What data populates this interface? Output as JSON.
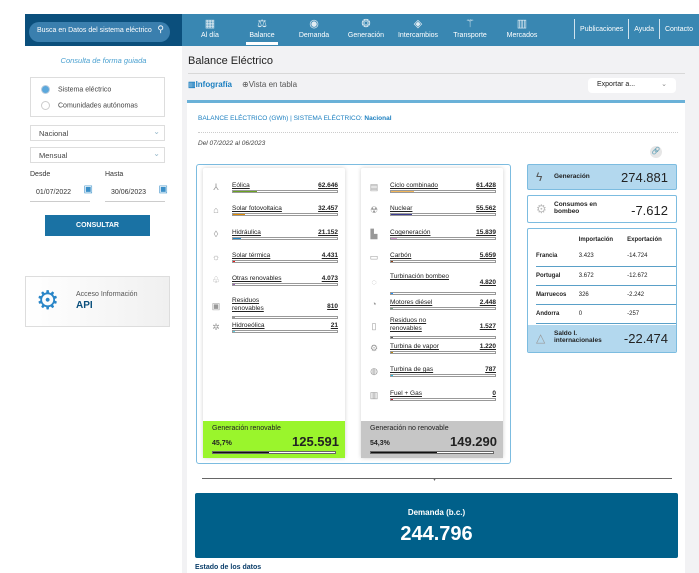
{
  "search": {
    "placeholder": "Busca en Datos del sistema eléctrico"
  },
  "nav": {
    "items": [
      {
        "label": "Al día",
        "icon": "calendar-icon",
        "glyph": "▦"
      },
      {
        "label": "Balance",
        "icon": "scale-icon",
        "glyph": "⚖",
        "active": true
      },
      {
        "label": "Demanda",
        "icon": "demand-icon",
        "glyph": "◉"
      },
      {
        "label": "Generación",
        "icon": "generation-icon",
        "glyph": "❂"
      },
      {
        "label": "Intercambios",
        "icon": "exchange-icon",
        "glyph": "◈"
      },
      {
        "label": "Transporte",
        "icon": "tower-icon",
        "glyph": "⚚"
      },
      {
        "label": "Mercados",
        "icon": "markets-icon",
        "glyph": "▥"
      }
    ],
    "links": [
      "Publicaciones",
      "Ayuda",
      "Contacto"
    ]
  },
  "sidebar": {
    "guided": "Consulta de forma guiada",
    "radios": [
      "Sistema eléctrico",
      "Comunidades autónomas"
    ],
    "region": "Nacional",
    "granularity": "Mensual",
    "from_label": "Desde",
    "from": "01/07/2022",
    "to_label": "Hasta",
    "to": "30/06/2023",
    "consult": "CONSULTAR",
    "api_line1": "Acceso Información",
    "api_line2": "API"
  },
  "page": {
    "title": "Balance Eléctrico",
    "tab_infographic": "Infografía",
    "tab_table": "Vista en tabla",
    "export": "Exportar a...",
    "header_a": "BALANCE ELÉCTRICO (GWh) | SISTEMA ELÉCTRICO:",
    "header_b": "Nacional",
    "period": "Del 07/2022 al 06/2023"
  },
  "renewable": {
    "items": [
      {
        "name": "Eólica",
        "value": "62.646",
        "num": 62646,
        "color": "#6aa121",
        "icon": "wind-turbine-icon",
        "glyph": "⅄"
      },
      {
        "name": "Solar fotovoltaica",
        "value": "32.457",
        "num": 32457,
        "color": "#e08a00",
        "icon": "solar-panel-icon",
        "glyph": "⌂"
      },
      {
        "name": "Hidráulica",
        "value": "21.152",
        "num": 21152,
        "color": "#1f87c8",
        "icon": "water-drop-icon",
        "glyph": "◊"
      },
      {
        "name": "Solar térmica",
        "value": "4.431",
        "num": 4431,
        "color": "#e81010",
        "icon": "sun-icon",
        "glyph": "☼"
      },
      {
        "name": "Otras renovables",
        "value": "4.073",
        "num": 4073,
        "color": "#9b59b6",
        "icon": "leaf-hand-icon",
        "glyph": "♧"
      },
      {
        "name": "Residuos renovables",
        "value": "810",
        "num": 810,
        "color": "#999999",
        "icon": "recycle-bin-icon",
        "glyph": "▣"
      },
      {
        "name": "Hidroeólica",
        "value": "21",
        "num": 21,
        "color": "#5bd0e6",
        "icon": "hydrowind-icon",
        "glyph": "✲"
      }
    ],
    "footer_label": "Generación renovable",
    "pct": "45,7%",
    "pct_num": 45.7,
    "total": "125.591",
    "color": "#9af52c"
  },
  "nonrenewable": {
    "items": [
      {
        "name": "Ciclo combinado",
        "value": "61.428",
        "num": 61428,
        "color": "#f2b65a",
        "icon": "combined-cycle-icon",
        "glyph": "▤"
      },
      {
        "name": "Nuclear",
        "value": "55.562",
        "num": 55562,
        "color": "#3b3b8f",
        "icon": "nuclear-icon",
        "glyph": "☢"
      },
      {
        "name": "Cogeneración",
        "value": "15.839",
        "num": 15839,
        "color": "#d59ad0",
        "icon": "cogeneration-icon",
        "glyph": "▙"
      },
      {
        "name": "Carbón",
        "value": "5.659",
        "num": 5659,
        "color": "#8b3a0f",
        "icon": "coal-icon",
        "glyph": "▭"
      },
      {
        "name": "Turbinación bombeo",
        "value": "4.820",
        "num": 4820,
        "color": "#1e90ff",
        "icon": "pump-turbine-icon",
        "glyph": "◌"
      },
      {
        "name": "Motores diésel",
        "value": "2.448",
        "num": 2448,
        "color": "#7fa88f",
        "icon": "diesel-engine-icon",
        "glyph": "◔"
      },
      {
        "name": "Residuos no renovables",
        "value": "1.527",
        "num": 1527,
        "color": "#555555",
        "icon": "waste-bin-icon",
        "glyph": "▯"
      },
      {
        "name": "Turbina de vapor",
        "value": "1.220",
        "num": 1220,
        "color": "#b8860b",
        "icon": "steam-turbine-icon",
        "glyph": "⚙"
      },
      {
        "name": "Turbina de gas",
        "value": "787",
        "num": 787,
        "color": "#1ec0e8",
        "icon": "gas-turbine-icon",
        "glyph": "◍"
      },
      {
        "name": "Fuel + Gas",
        "value": "0",
        "num": 0,
        "color": "#c0102a",
        "icon": "fuel-tank-icon",
        "glyph": "▥"
      }
    ],
    "footer_label": "Generación no renovable",
    "pct": "54,3%",
    "pct_num": 54.3,
    "total": "149.290",
    "color": "#c6c6c6"
  },
  "generation": {
    "label": "Generación",
    "value": "274.881",
    "total_num": 274881
  },
  "pumping": {
    "label": "Consumos en bombeo",
    "value": "-7.612"
  },
  "exchanges": {
    "col_import": "Importación",
    "col_export": "Exportación",
    "rows": [
      {
        "country": "Francia",
        "import": "3.423",
        "export": "-14.724"
      },
      {
        "country": "Portugal",
        "import": "3.672",
        "export": "-12.672"
      },
      {
        "country": "Marruecos",
        "import": "326",
        "export": "-2.242"
      },
      {
        "country": "Andorra",
        "import": "0",
        "export": "-257"
      }
    ],
    "balance_label": "Saldo I. internacionales",
    "balance": "-22.474"
  },
  "demand": {
    "label": "Demanda (b.c.)",
    "value": "244.796"
  },
  "data_state": "Estado de los datos",
  "colors": {
    "nav": "#3987b2",
    "brand_dark": "#0b4f7c",
    "demand": "#00608a",
    "accent": "#1b7fc0"
  }
}
